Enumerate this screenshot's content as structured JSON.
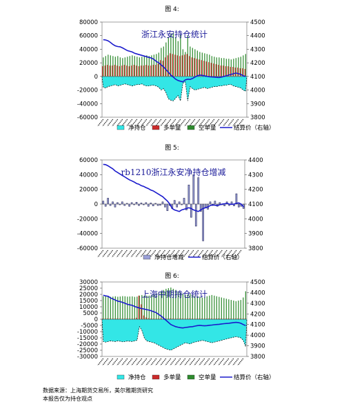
{
  "figures": [
    {
      "label": "图 4:"
    },
    {
      "label": "图 5:"
    },
    {
      "label": "图 6:"
    }
  ],
  "footer": {
    "source": "数据来源：上海期货交易所，美尔雅期货研究",
    "note": "本报告仅为持仓观点"
  },
  "chart_data": [
    {
      "type": "bar",
      "title": "浙江永安持仓统计",
      "ylim": [
        -60000,
        80000
      ],
      "yticks": [
        -60000,
        -40000,
        -20000,
        0,
        20000,
        40000,
        60000,
        80000
      ],
      "y2lim": [
        3800,
        4500
      ],
      "y2ticks": [
        3800,
        3900,
        4000,
        4100,
        4200,
        4300,
        4400,
        4500
      ],
      "legend": [
        "净持仓",
        "多单量",
        "空单量",
        "结算价（右轴）"
      ],
      "legend_placement": "bottom",
      "colors": {
        "net": "#33e6e6",
        "long": "#cc2b2b",
        "short": "#2e8b2e",
        "price": "#1a1acc"
      },
      "n": 60,
      "series": [
        {
          "name": "净持仓",
          "kind": "area",
          "values": [
            -16000,
            -17000,
            -15000,
            -14000,
            -13000,
            -12000,
            -14000,
            -13000,
            -12000,
            -11000,
            -12000,
            -13000,
            -14000,
            -13000,
            -12000,
            -12000,
            -11000,
            -13000,
            -14000,
            -14000,
            -13000,
            -13000,
            -14000,
            -16000,
            -20000,
            -18000,
            -24000,
            -33000,
            -35000,
            -36000,
            -32000,
            -28000,
            -36000,
            -10000,
            -8000,
            -36000,
            -15000,
            -18000,
            -20000,
            -19000,
            -18000,
            -17000,
            -16000,
            -18000,
            -17000,
            -16000,
            -15000,
            -15000,
            -14000,
            -14000,
            -13000,
            -13000,
            -12000,
            -12000,
            -14000,
            -15000,
            -16000,
            -17000,
            -20000,
            -22000
          ]
        },
        {
          "name": "多单量",
          "kind": "bar",
          "values": [
            15000,
            16000,
            17000,
            16000,
            16000,
            17000,
            16000,
            15000,
            16000,
            17000,
            16000,
            15000,
            16000,
            17000,
            16000,
            15000,
            16000,
            16000,
            17000,
            16000,
            16000,
            17000,
            17000,
            19000,
            24000,
            23000,
            28000,
            31000,
            34000,
            33000,
            32000,
            31000,
            30000,
            31000,
            32000,
            33000,
            30000,
            28000,
            27000,
            26000,
            25000,
            24000,
            23000,
            22000,
            21000,
            20000,
            19000,
            18000,
            17000,
            16000,
            16000,
            15000,
            15000,
            14000,
            14000,
            13000,
            13000,
            12000,
            12000,
            11000
          ]
        },
        {
          "name": "空单量",
          "kind": "bar",
          "values": [
            28000,
            30000,
            32000,
            31000,
            30000,
            29000,
            30000,
            28000,
            27000,
            28000,
            29000,
            30000,
            31000,
            30000,
            29000,
            28000,
            29000,
            30000,
            31000,
            30000,
            31000,
            32000,
            33000,
            35000,
            42000,
            44000,
            50000,
            58000,
            62000,
            64000,
            58000,
            52000,
            62000,
            40000,
            36000,
            60000,
            44000,
            42000,
            40000,
            38000,
            36000,
            35000,
            34000,
            33000,
            32000,
            30000,
            29000,
            28000,
            28000,
            27000,
            27000,
            26000,
            26000,
            25000,
            26000,
            27000,
            28000,
            29000,
            31000,
            33000
          ]
        },
        {
          "name": "结算价（右轴）",
          "kind": "line",
          "axis": "right",
          "values": [
            4370,
            4368,
            4362,
            4350,
            4335,
            4325,
            4320,
            4318,
            4310,
            4300,
            4290,
            4285,
            4280,
            4270,
            4265,
            4260,
            4255,
            4250,
            4245,
            4240,
            4235,
            4225,
            4210,
            4200,
            4185,
            4170,
            4150,
            4130,
            4110,
            4095,
            4080,
            4070,
            4065,
            4060,
            4075,
            4080,
            4078,
            4085,
            4095,
            4105,
            4110,
            4108,
            4105,
            4100,
            4098,
            4096,
            4095,
            4093,
            4092,
            4095,
            4100,
            4105,
            4110,
            4115,
            4120,
            4125,
            4120,
            4115,
            4105,
            4100
          ]
        }
      ]
    },
    {
      "type": "bar",
      "title": "rb1210浙江永安净持仓增减",
      "ylim": [
        -60000,
        60000
      ],
      "yticks": [
        -60000,
        -40000,
        -20000,
        0,
        20000,
        40000,
        60000
      ],
      "y2lim": [
        3800,
        4400
      ],
      "y2ticks": [
        3800,
        3900,
        4000,
        4100,
        4200,
        4300,
        4400
      ],
      "legend": [
        "净持仓增减",
        "结算价（右轴）"
      ],
      "legend_placement": "bottom",
      "colors": {
        "change": "#9aa0d8",
        "price": "#1a1acc"
      },
      "n": 60,
      "series": [
        {
          "name": "净持仓增减",
          "kind": "bar",
          "values": [
            4000,
            -3000,
            8000,
            -2000,
            3000,
            -4000,
            2000,
            -1000,
            3000,
            -2000,
            1000,
            -3000,
            2000,
            -1000,
            2500,
            -2000,
            1500,
            -1000,
            2000,
            -3000,
            1500,
            -2500,
            1000,
            -2000,
            -1500,
            3000,
            -4000,
            -9000,
            -2000,
            -6000,
            5000,
            -4000,
            3000,
            -1000,
            8000,
            -8000,
            26000,
            -18000,
            40000,
            -30000,
            36000,
            -10000,
            -50000,
            -5000,
            -7000,
            3000,
            -2000,
            4000,
            -3000,
            2000,
            -1000,
            -2500,
            3000,
            -2000,
            3000,
            -2500,
            14000,
            -4000,
            -3000,
            -6000
          ]
        },
        {
          "name": "结算价（右轴）",
          "kind": "line",
          "axis": "right",
          "values": [
            4370,
            4368,
            4360,
            4350,
            4340,
            4325,
            4315,
            4305,
            4295,
            4285,
            4275,
            4265,
            4258,
            4250,
            4240,
            4235,
            4225,
            4220,
            4212,
            4205,
            4195,
            4190,
            4180,
            4170,
            4160,
            4150,
            4135,
            4120,
            4100,
            4070,
            4060,
            4055,
            4050,
            4060,
            4065,
            4070,
            4075,
            4070,
            4060,
            4055,
            4050,
            4060,
            4070,
            4075,
            4080,
            4090,
            4095,
            4092,
            4090,
            4095,
            4100,
            4102,
            4105,
            4100,
            4098,
            4100,
            4105,
            4108,
            4100,
            4080
          ]
        }
      ]
    },
    {
      "type": "bar",
      "title": "上海中期持仓统计",
      "ylim": [
        -30000,
        30000
      ],
      "yticks": [
        -30000,
        -25000,
        -20000,
        -15000,
        -10000,
        -5000,
        0,
        5000,
        10000,
        15000,
        20000,
        25000,
        30000
      ],
      "y2lim": [
        3800,
        4500
      ],
      "y2ticks": [
        3800,
        3900,
        4000,
        4100,
        4200,
        4300,
        4400,
        4500
      ],
      "legend": [
        "净持仓",
        "多单量",
        "空单量",
        "结算价（右轴）"
      ],
      "legend_placement": "bottom",
      "colors": {
        "net": "#33e6e6",
        "long": "#cc2b2b",
        "short": "#2e8b2e",
        "price": "#1a1acc"
      },
      "n": 60,
      "series": [
        {
          "name": "净持仓",
          "kind": "area",
          "values": [
            -18000,
            -18500,
            -18000,
            -17500,
            -17800,
            -18000,
            -17500,
            -17800,
            -18200,
            -18000,
            -17600,
            -17800,
            -18000,
            -17500,
            -17000,
            -6000,
            -9000,
            -15000,
            -17500,
            -18000,
            -18500,
            -19000,
            -20000,
            -21000,
            -22000,
            -23000,
            -24000,
            -24500,
            -25000,
            -24000,
            -23000,
            -22000,
            -21000,
            -20000,
            -19000,
            -19500,
            -20000,
            -19000,
            -18500,
            -18000,
            -17500,
            -17000,
            -17500,
            -18000,
            -18500,
            -19000,
            -18500,
            -18000,
            -17500,
            -17000,
            -16500,
            -16000,
            -15500,
            -15000,
            -14500,
            -14000,
            -14500,
            -15000,
            -17000,
            -22000
          ]
        },
        {
          "name": "多单量",
          "kind": "bar",
          "values": [
            500,
            400,
            600,
            500,
            400,
            500,
            600,
            500,
            400,
            500,
            600,
            500,
            400,
            500,
            1200,
            19000,
            12000,
            3000,
            1500,
            800,
            600,
            500,
            400,
            500,
            600,
            500,
            400,
            500,
            600,
            500,
            400,
            500,
            600,
            500,
            400,
            500,
            600,
            500,
            400,
            500,
            600,
            500,
            400,
            500,
            600,
            500,
            400,
            500,
            600,
            500,
            400,
            500,
            600,
            500,
            400,
            500,
            600,
            500,
            400,
            500
          ]
        },
        {
          "name": "空单量",
          "kind": "bar",
          "values": [
            18500,
            18900,
            18600,
            18000,
            18200,
            18500,
            18100,
            18300,
            18600,
            18500,
            18200,
            18300,
            18400,
            18000,
            18200,
            19000,
            19500,
            19000,
            19000,
            19000,
            19500,
            20000,
            20500,
            21500,
            22500,
            23500,
            24500,
            25000,
            25500,
            24500,
            23500,
            22500,
            21500,
            20500,
            19500,
            20000,
            20500,
            19500,
            19000,
            18500,
            18000,
            17500,
            18000,
            18500,
            19000,
            19500,
            19000,
            18500,
            18000,
            17500,
            17000,
            16500,
            16000,
            15500,
            15000,
            14500,
            15000,
            15500,
            17500,
            22500
          ]
        },
        {
          "name": "结算价（右轴）",
          "kind": "line",
          "axis": "right",
          "values": [
            4375,
            4370,
            4365,
            4350,
            4340,
            4330,
            4320,
            4315,
            4308,
            4300,
            4290,
            4285,
            4280,
            4270,
            4262,
            4255,
            4250,
            4245,
            4240,
            4235,
            4228,
            4220,
            4210,
            4195,
            4180,
            4160,
            4140,
            4120,
            4100,
            4090,
            4080,
            4075,
            4070,
            4068,
            4072,
            4075,
            4078,
            4080,
            4085,
            4090,
            4092,
            4090,
            4088,
            4090,
            4093,
            4095,
            4098,
            4100,
            4102,
            4105,
            4108,
            4110,
            4112,
            4115,
            4118,
            4120,
            4118,
            4112,
            4100,
            4090
          ]
        }
      ]
    }
  ]
}
